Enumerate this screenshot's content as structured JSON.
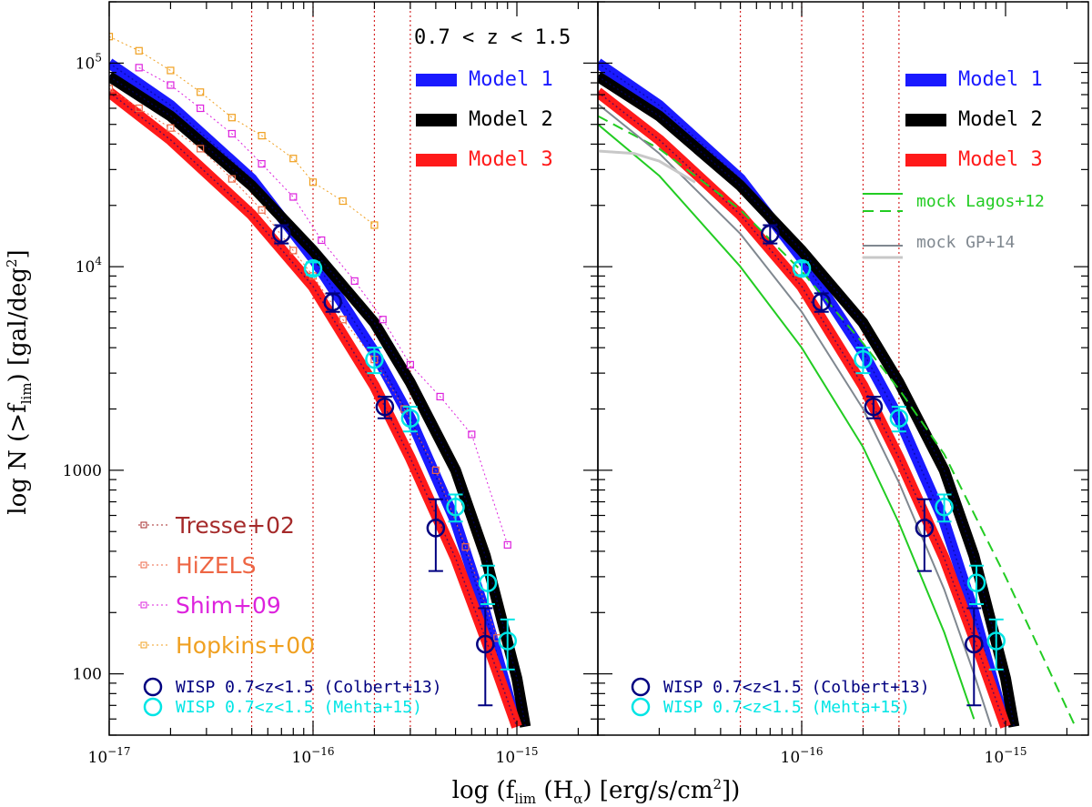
{
  "chart_data": {
    "type": "line",
    "xlabel": "log (f_lim (H_α) [erg/s/cm²])",
    "ylabel": "log N (>f_lim) [gal/deg²]",
    "x_scale": "log",
    "y_scale": "log",
    "xlim": [
      1e-17,
      2.4e-15
    ],
    "ylim": [
      50,
      200000
    ],
    "x_ticks": [
      1e-17,
      1e-16,
      1e-15
    ],
    "x_tick_labels": [
      "10⁻¹⁷",
      "10⁻¹⁶",
      "10⁻¹⁵"
    ],
    "y_ticks": [
      100,
      1000,
      10000,
      100000
    ],
    "y_tick_labels": [
      "100",
      "1000",
      "10⁴",
      "10⁵"
    ],
    "vertical_lines": [
      5e-17,
      1e-16,
      2e-16,
      3e-16
    ],
    "vertical_line_color": "#d62728",
    "panels": [
      {
        "annotation": "0.7 < z < 1.5",
        "x_axis_labels_shown": [
          true,
          true,
          true
        ],
        "series": [
          {
            "name": "Model 1",
            "color": "#1a1aff",
            "width": 12,
            "style": "solid",
            "x": [
              1e-17,
              2e-17,
              5e-17,
              1e-16,
              2e-16,
              3e-16,
              5e-16,
              7e-16,
              1e-15
            ],
            "y": [
              100000,
              62000,
              27000,
              11000,
              3800,
              1800,
              560,
              200,
              55
            ]
          },
          {
            "name": "Model 2",
            "color": "#000000",
            "width": 12,
            "style": "solid",
            "x": [
              1e-17,
              2e-17,
              5e-17,
              1e-16,
              2e-16,
              3e-16,
              5e-16,
              7e-16,
              1e-15,
              1.1e-15
            ],
            "y": [
              86000,
              55000,
              25000,
              12000,
              5300,
              2700,
              1000,
              380,
              95,
              55
            ]
          },
          {
            "name": "Model 3",
            "color": "#ff1a1a",
            "width": 12,
            "style": "solid",
            "x": [
              1e-17,
              2e-17,
              5e-17,
              1e-16,
              2e-16,
              3e-16,
              5e-16,
              7e-16,
              1e-15
            ],
            "y": [
              72000,
              42000,
              18000,
              8000,
              2600,
              1150,
              370,
              150,
              55
            ]
          },
          {
            "name": "Tresse+02",
            "color": "#a52a2a",
            "width": 1,
            "style": "dotted",
            "marker": "square",
            "x": [],
            "y": []
          },
          {
            "name": "HiZELS",
            "color": "#ee6644",
            "width": 1,
            "style": "dotted",
            "marker": "square",
            "x": [
              1e-17,
              1.4e-17,
              2e-17,
              2.8e-17,
              4e-17,
              5.6e-17,
              8e-17,
              1e-16,
              1.4e-16,
              2e-16,
              2.8e-16,
              4e-16,
              5.6e-16,
              8e-16
            ],
            "y": [
              75000,
              60000,
              48000,
              38000,
              27000,
              19000,
              12000,
              9000,
              5500,
              3500,
              2000,
              1000,
              420,
              150
            ]
          },
          {
            "name": "Shim+09",
            "color": "#dd22dd",
            "width": 1,
            "style": "dotted",
            "marker": "square",
            "x": [
              1.4e-17,
              2e-17,
              2.8e-17,
              4e-17,
              5.6e-17,
              8e-17,
              1.1e-16,
              1.6e-16,
              2.2e-16,
              3e-16,
              4.2e-16,
              6e-16,
              9e-16
            ],
            "y": [
              95000,
              78000,
              60000,
              45000,
              32000,
              22000,
              13500,
              8500,
              5500,
              3300,
              2300,
              1500,
              430
            ]
          },
          {
            "name": "Hopkins+00",
            "color": "#f0a020",
            "width": 1,
            "style": "dotted",
            "marker": "square",
            "x": [
              1e-17,
              1.4e-17,
              2e-17,
              2.8e-17,
              4e-17,
              5.6e-17,
              8e-17,
              1e-16,
              1.4e-16,
              2e-16
            ],
            "y": [
              135000,
              115000,
              92000,
              72000,
              54000,
              44000,
              34000,
              26000,
              21000,
              16000
            ]
          },
          {
            "name": "WISP 0.7<z<1.5 (Colbert+13)",
            "color": "#000080",
            "marker": "circle",
            "x": [
              7e-17,
              1.25e-16,
              2.25e-16,
              4e-16,
              7e-16
            ],
            "y": [
              14500,
              6700,
              2050,
              520,
              140
            ],
            "err_low": [
              1500,
              700,
              250,
              200,
              70
            ],
            "err_high": [
              1500,
              700,
              250,
              200,
              70
            ]
          },
          {
            "name": "WISP 0.7<z<1.5 (Mehta+15)",
            "color": "#00e5e5",
            "marker": "circle",
            "x": [
              1e-16,
              2e-16,
              3e-16,
              5e-16,
              7.2e-16,
              9e-16
            ],
            "y": [
              9800,
              3500,
              1800,
              660,
              280,
              145
            ],
            "err_low": [
              700,
              500,
              250,
              100,
              60,
              40
            ],
            "err_high": [
              700,
              500,
              250,
              100,
              60,
              40
            ]
          }
        ]
      },
      {
        "annotation": "",
        "series": [
          {
            "name": "Model 1",
            "color": "#1a1aff",
            "width": 12,
            "style": "solid",
            "x": [
              1e-17,
              2e-17,
              5e-17,
              1e-16,
              2e-16,
              3e-16,
              5e-16,
              7e-16,
              1e-15
            ],
            "y": [
              100000,
              62000,
              27000,
              11000,
              3800,
              1800,
              560,
              200,
              55
            ]
          },
          {
            "name": "Model 2",
            "color": "#000000",
            "width": 12,
            "style": "solid",
            "x": [
              1e-17,
              2e-17,
              5e-17,
              1e-16,
              2e-16,
              3e-16,
              5e-16,
              7e-16,
              1e-15,
              1.1e-15
            ],
            "y": [
              86000,
              55000,
              25000,
              12000,
              5300,
              2700,
              1000,
              380,
              95,
              55
            ]
          },
          {
            "name": "Model 3",
            "color": "#ff1a1a",
            "width": 12,
            "style": "solid",
            "x": [
              1e-17,
              2e-17,
              5e-17,
              1e-16,
              2e-16,
              3e-16,
              5e-16,
              7e-16,
              1e-15
            ],
            "y": [
              72000,
              42000,
              18000,
              8000,
              2600,
              1150,
              370,
              150,
              55
            ]
          },
          {
            "name": "mock Lagos+12",
            "color": "#22cc22",
            "width": 2,
            "style": "solid",
            "x": [
              1e-17,
              2e-17,
              5e-17,
              1e-16,
              2e-16,
              3e-16,
              5e-16,
              7e-16
            ],
            "y": [
              50000,
              28000,
              10000,
              4000,
              1300,
              550,
              160,
              60
            ]
          },
          {
            "name": "mock Lagos+12 (dashed)",
            "color": "#22cc22",
            "width": 2,
            "style": "dashed",
            "x": [
              1e-17,
              2e-17,
              5e-17,
              1e-16,
              2e-16,
              3e-16,
              5e-16,
              1e-15,
              2.2e-15
            ],
            "y": [
              55000,
              38000,
              19000,
              9500,
              4200,
              2500,
              1200,
              300,
              55
            ]
          },
          {
            "name": "mock GP+14",
            "color": "#808890",
            "width": 2,
            "style": "solid",
            "x": [
              1e-17,
              2e-17,
              5e-17,
              1e-16,
              2e-16,
              3e-16,
              5e-16,
              7e-16,
              8.5e-16
            ],
            "y": [
              63000,
              36000,
              14500,
              6000,
              2000,
              870,
              260,
              100,
              55
            ]
          },
          {
            "name": "mock GP+14 (light)",
            "color": "#c8c8c8",
            "width": 3,
            "style": "solid",
            "x": [
              1e-17,
              1.5e-17,
              2e-17,
              3e-17
            ],
            "y": [
              37000,
              36000,
              33000,
              26000
            ]
          },
          {
            "name": "WISP 0.7<z<1.5 (Colbert+13)",
            "color": "#000080",
            "marker": "circle",
            "x": [
              7e-17,
              1.25e-16,
              2.25e-16,
              4e-16,
              7e-16
            ],
            "y": [
              14500,
              6700,
              2050,
              520,
              140
            ],
            "err_low": [
              1500,
              700,
              250,
              200,
              70
            ],
            "err_high": [
              1500,
              700,
              250,
              200,
              70
            ]
          },
          {
            "name": "WISP 0.7<z<1.5 (Mehta+15)",
            "color": "#00e5e5",
            "marker": "circle",
            "x": [
              1e-16,
              2e-16,
              3e-16,
              5e-16,
              7.2e-16,
              9e-16
            ],
            "y": [
              9800,
              3500,
              1800,
              660,
              280,
              145
            ],
            "err_low": [
              700,
              500,
              250,
              100,
              60,
              40
            ],
            "err_high": [
              700,
              500,
              250,
              100,
              60,
              40
            ]
          }
        ]
      }
    ],
    "legends": {
      "left_models": [
        "Model 1",
        "Model 2",
        "Model 3"
      ],
      "right_models": [
        "Model 1",
        "Model 2",
        "Model 3"
      ],
      "left_obs": [
        "Tresse+02",
        "HiZELS",
        "Shim+09",
        "Hopkins+00"
      ],
      "wisp": [
        "WISP 0.7<z<1.5 (Colbert+13)",
        "WISP 0.7<z<1.5 (Mehta+15)"
      ],
      "mocks": [
        "mock Lagos+12",
        "mock GP+14"
      ]
    }
  },
  "text": {
    "annotation": "0.7 < z < 1.5",
    "xlabel": "log (f_lim (H_α) [erg/s/cm²])",
    "ylabel": "log N (>f_lim) [gal/deg²]"
  }
}
